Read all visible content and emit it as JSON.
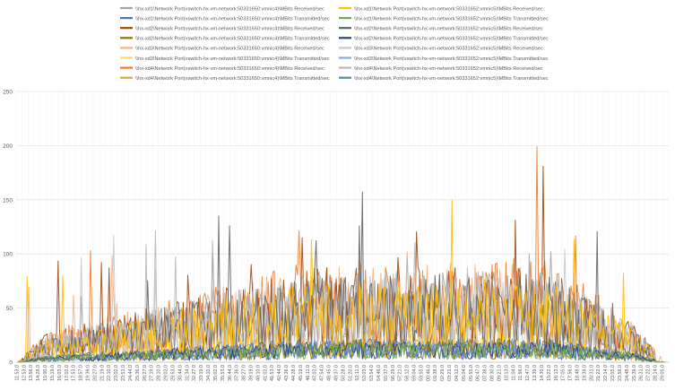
{
  "chart_data": {
    "type": "line",
    "title": "",
    "xlabel": "",
    "ylabel": "",
    "ylim": [
      0,
      250
    ],
    "yticks": [
      0,
      50,
      100,
      150,
      200,
      250
    ],
    "grid": true,
    "legend_position": "top",
    "x_tick_labels": [
      "11:53.0",
      "12:53.0",
      "13:56.0",
      "14:28.0",
      "15:00.0",
      "15:19.0",
      "16:03.0",
      "17:02.0",
      "17:53.0",
      "18:57.0",
      "19:36.0",
      "20:27.0",
      "21:19.0",
      "22:10.0",
      "23:02.0",
      "23:53.0",
      "24:44.0",
      "25:36.0",
      "26:27.0",
      "27:19.0",
      "28:10.0",
      "29:02.0",
      "29:53.0",
      "30:44.0",
      "31:34.0",
      "32:27.0",
      "33:19.0",
      "34:10.0",
      "35:02.0",
      "35:53.0",
      "36:44.0",
      "37:36.0",
      "38:27.0",
      "39:19.0",
      "40:10.0",
      "41:02.0",
      "41:53.0",
      "42:44.0",
      "43:36.0",
      "44:28.0",
      "45:19.0",
      "46:11.0",
      "47:02.0",
      "47:54.0",
      "48:45.0",
      "49:37.0",
      "50:28.0",
      "51:20.0",
      "52:11.0",
      "53:03.0",
      "53:54.0",
      "54:46.0",
      "55:37.0",
      "56:29.0",
      "57:21.0",
      "58:12.0",
      "59:04.0",
      "59:55.0",
      "00:46.0",
      "01:38.0",
      "02:29.0",
      "03:21.0",
      "04:12.0",
      "05:04.0",
      "05:55.0",
      "06:47.0",
      "07:38.0",
      "08:30.0",
      "09:21.0",
      "10:13.0",
      "11:04.0",
      "11:56.0",
      "12:47.0",
      "13:39.0",
      "14:30.0",
      "15:22.0",
      "16:13.0",
      "17:05.0",
      "17:56.0",
      "18:48.0",
      "19:39.0",
      "20:31.0",
      "21:22.0",
      "22:14.0",
      "23:05.0",
      "23:56.0",
      "24:48.0",
      "25:39.0",
      "26:31.0",
      "27:22.0",
      "28:14.0",
      "29:05.0"
    ],
    "series": [
      {
        "name": "\\\\hx-xd1\\Network Port(vswitch-hx-vm-network:50331650:vmnic4)\\MBits Received/sec",
        "color": "#a5a5a5",
        "level": 38,
        "amp": 32,
        "seed": 11
      },
      {
        "name": "\\\\hx-xd1\\Network Port(vswitch-hx-vm-network:50331652:vmnic5)\\MBits Received/sec",
        "color": "#ffc000",
        "level": 32,
        "amp": 30,
        "seed": 12
      },
      {
        "name": "\\\\hx-xd1\\Network Port(vswitch-hx-vm-network:50331650:vmnic4)\\MBits Transmitted/sec",
        "color": "#4472c4",
        "level": 10,
        "amp": 8,
        "seed": 13
      },
      {
        "name": "\\\\hx-xd1\\Network Port(vswitch-hx-vm-network:50331652:vmnic5)\\MBits Transmitted/sec",
        "color": "#70ad47",
        "level": 9,
        "amp": 7,
        "seed": 14
      },
      {
        "name": "\\\\hx-xd2\\Network Port(vswitch-hx-vm-network:50331650:vmnic4)\\MBits Received/sec",
        "color": "#9e480e",
        "level": 40,
        "amp": 34,
        "seed": 15
      },
      {
        "name": "\\\\hx-xd2\\Network Port(vswitch-hx-vm-network:50331652:vmnic5)\\MBits Received/sec",
        "color": "#636363",
        "level": 36,
        "amp": 32,
        "seed": 16
      },
      {
        "name": "\\\\hx-xd2\\Network Port(vswitch-hx-vm-network:50331650:vmnic4)\\MBits Transmitted/sec",
        "color": "#997300",
        "level": 10,
        "amp": 8,
        "seed": 17
      },
      {
        "name": "\\\\hx-xd2\\Network Port(vswitch-hx-vm-network:50331652:vmnic5)\\MBits Transmitted/sec",
        "color": "#264478",
        "level": 9,
        "amp": 7,
        "seed": 18
      },
      {
        "name": "\\\\hx-xd3\\Network Port(vswitch-hx-vm-network:50331650:vmnic4)\\MBits Received/sec",
        "color": "#f4b183",
        "level": 42,
        "amp": 34,
        "seed": 19
      },
      {
        "name": "\\\\hx-xd3\\Network Port(vswitch-hx-vm-network:50331652:vmnic5)\\MBits Received/sec",
        "color": "#c9c9c9",
        "level": 36,
        "amp": 30,
        "seed": 20
      },
      {
        "name": "\\\\hx-xd3\\Network Port(vswitch-hx-vm-network:50331650:vmnic4)\\MBits Transmitted/sec",
        "color": "#ffd966",
        "level": 11,
        "amp": 8,
        "seed": 21
      },
      {
        "name": "\\\\hx-xd3\\Network Port(vswitch-hx-vm-network:50331652:vmnic5)\\MBits Transmitted/sec",
        "color": "#8faadc",
        "level": 10,
        "amp": 8,
        "seed": 22
      },
      {
        "name": "\\\\hx-xd4\\Network Port(vswitch-hx-vm-network:50331650:vmnic4)\\MBits Received/sec",
        "color": "#ed7d31",
        "level": 44,
        "amp": 36,
        "seed": 23
      },
      {
        "name": "\\\\hx-xd4\\Network Port(vswitch-hx-vm-network:50331652:vmnic5)\\MBits Received/sec",
        "color": "#b7b7b7",
        "level": 38,
        "amp": 32,
        "seed": 24
      },
      {
        "name": "\\\\hx-xd4\\Network Port(vswitch-hx-vm-network:50331650:vmnic4)\\MBits Transmitted/sec",
        "color": "#e6a23c",
        "level": 10,
        "amp": 8,
        "seed": 25
      },
      {
        "name": "\\\\hx-xd4\\Network Port(vswitch-hx-vm-network:50331652:vmnic5)\\MBits Transmitted/sec",
        "color": "#5b7fc7",
        "level": 9,
        "amp": 7,
        "seed": 26
      }
    ]
  }
}
